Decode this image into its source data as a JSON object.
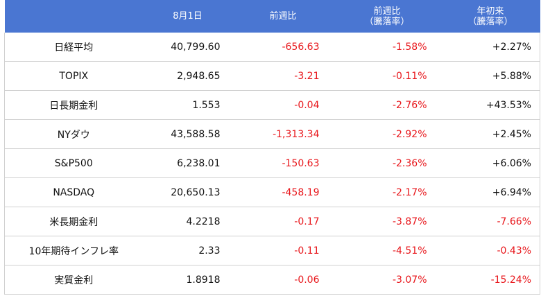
{
  "table": {
    "header": [
      [
        "8月1日"
      ],
      [
        "前週比"
      ],
      [
        "前週比",
        "（騰落率）"
      ],
      [
        "年初来",
        "（騰落率）"
      ]
    ],
    "rows": [
      [
        "日経平均",
        "40,799.60",
        "-656.63",
        "-1.58%",
        "+2.27%"
      ],
      [
        "TOPIX",
        "2,948.65",
        "-3.21",
        "-0.11%",
        "+5.88%"
      ],
      [
        "日長期金利",
        "1.553",
        "-0.04",
        "-2.76%",
        "+43.53%"
      ],
      [
        "NYダウ",
        "43,588.58",
        "-1,313.34",
        "-2.92%",
        "+2.45%"
      ],
      [
        "S&P500",
        "6,238.01",
        "-150.63",
        "-2.36%",
        "+6.06%"
      ],
      [
        "NASDAQ",
        "20,650.13",
        "-458.19",
        "-2.17%",
        "+6.94%"
      ],
      [
        "米長期金利",
        "4.2218",
        "-0.17",
        "-3.87%",
        "-7.66%"
      ],
      [
        "10年期待インフレ率",
        "2.33",
        "-0.11",
        "-4.51%",
        "-0.43%"
      ],
      [
        "実質金利",
        "1.8918",
        "-0.06",
        "-3.07%",
        "-15.24%"
      ]
    ],
    "negative_color": "#e8161b",
    "header_color": "#4a76d2"
  }
}
